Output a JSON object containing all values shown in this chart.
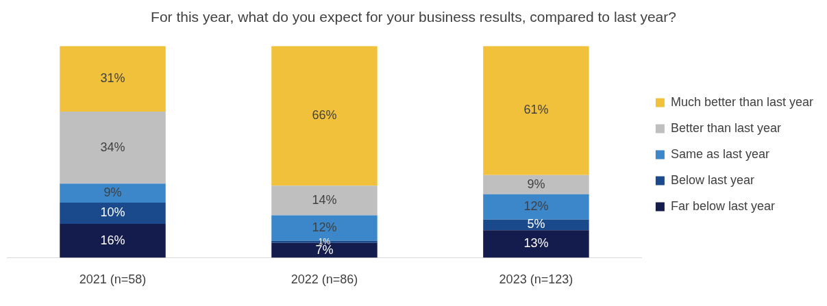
{
  "chart_data": {
    "type": "bar",
    "stacked": true,
    "title": "For this year, what do you expect for your business results, compared to last year?",
    "categories": [
      "2021 (n=58)",
      "2022 (n=86)",
      "2023 (n=123)"
    ],
    "legend": "right",
    "grid": false,
    "tick_labels": "x",
    "series": [
      {
        "name": "Far below last year",
        "color": "#141b4d",
        "values": [
          16,
          7,
          13
        ],
        "value_labels": [
          "16%",
          "7%",
          "13%"
        ]
      },
      {
        "name": "Below last year",
        "color": "#1b4a8c",
        "values": [
          10,
          1,
          5
        ],
        "value_labels": [
          "10%",
          "1%",
          "5%"
        ]
      },
      {
        "name": "Same as last year",
        "color": "#3b87c9",
        "values": [
          9,
          12,
          12
        ],
        "value_labels": [
          "9%",
          "12%",
          "12%"
        ]
      },
      {
        "name": "Better than last year",
        "color": "#bfbfbf",
        "values": [
          34,
          14,
          9
        ],
        "value_labels": [
          "34%",
          "14%",
          "9%"
        ]
      },
      {
        "name": "Much better than last year",
        "color": "#f2c13b",
        "values": [
          31,
          66,
          61
        ],
        "value_labels": [
          "31%",
          "66%",
          "61%"
        ]
      }
    ]
  }
}
